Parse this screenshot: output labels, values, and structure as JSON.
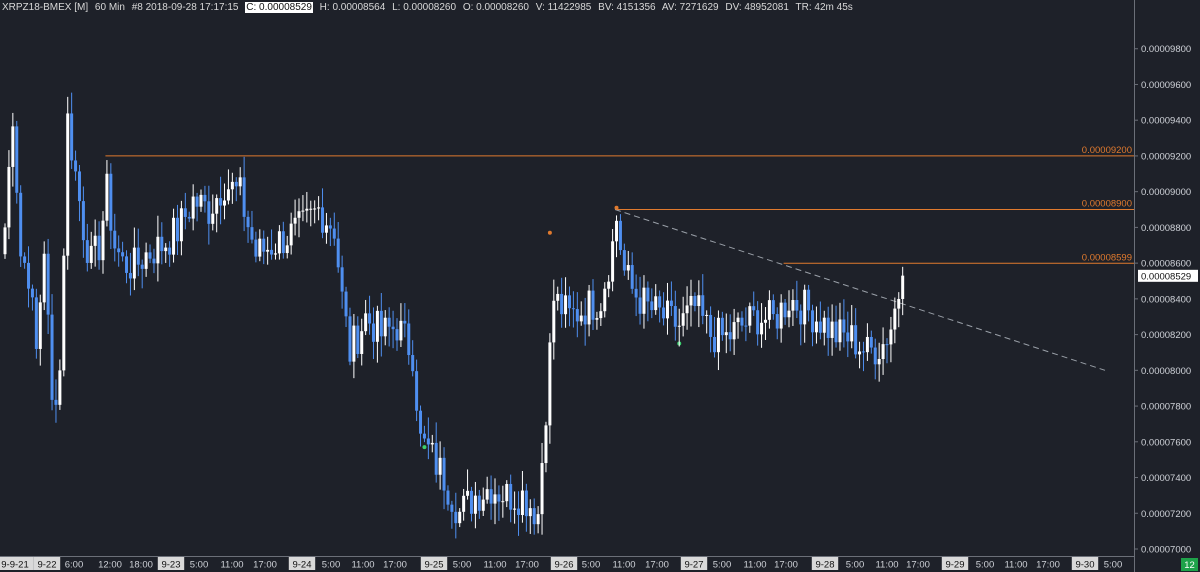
{
  "header": {
    "symbol": "XRPZ18-BMEX [M]",
    "timeframe": "60 Min",
    "bar_info": "#8 2018-09-28 17:17:15",
    "close": "C: 0.00008529",
    "high": "H: 0.00008564",
    "low": "L: 0.00008260",
    "open": "O: 0.00008260",
    "volume": "V: 11422985",
    "bv": "BV: 4151356",
    "av": "AV: 7271629",
    "dv": "DV: 48952081",
    "tr": "TR: 42m 45s"
  },
  "colors": {
    "background": "#1e2129",
    "up": "#ffffff",
    "down": "#4f8ff0",
    "level": "#e07a2e",
    "trend": "#9aa0a8"
  },
  "chart_data": {
    "type": "candlestick",
    "y_range": [
      7e-05,
      0.0001
    ],
    "y_ticks": [
      "0.00009800",
      "0.00009600",
      "0.00009400",
      "0.00009200",
      "0.00009000",
      "0.00008800",
      "0.00008600",
      "0.00008400",
      "0.00008200",
      "0.00008000",
      "0.00007800",
      "0.00007600",
      "0.00007400",
      "0.00007200",
      "0.00007000"
    ],
    "current_price_label": "0.00008529",
    "x_ticks": [
      {
        "label": "9-9-21",
        "date": true
      },
      {
        "label": "9-22",
        "date": true
      },
      {
        "label": "6:00"
      },
      {
        "label": "12:00"
      },
      {
        "label": "18:00"
      },
      {
        "label": "9-23",
        "date": true
      },
      {
        "label": "5:00"
      },
      {
        "label": "11:00"
      },
      {
        "label": "17:00"
      },
      {
        "label": "9-24",
        "date": true
      },
      {
        "label": "5:00"
      },
      {
        "label": "11:00"
      },
      {
        "label": "17:00"
      },
      {
        "label": "9-25",
        "date": true
      },
      {
        "label": "5:00"
      },
      {
        "label": "11:00"
      },
      {
        "label": "17:00"
      },
      {
        "label": "9-26",
        "date": true
      },
      {
        "label": "5:00"
      },
      {
        "label": "11:00"
      },
      {
        "label": "17:00"
      },
      {
        "label": "9-27",
        "date": true
      },
      {
        "label": "5:00"
      },
      {
        "label": "11:00"
      },
      {
        "label": "17:00"
      },
      {
        "label": "9-28",
        "date": true
      },
      {
        "label": "5:00"
      },
      {
        "label": "11:00"
      },
      {
        "label": "17:00"
      },
      {
        "label": "9-29",
        "date": true
      },
      {
        "label": "5:00"
      },
      {
        "label": "11:00"
      },
      {
        "label": "17:00"
      },
      {
        "label": "9-30",
        "date": true
      },
      {
        "label": "5:00"
      }
    ],
    "horizontal_levels": [
      {
        "label": "0.00009200",
        "value": 9.2e-05,
        "from_bar": 26
      },
      {
        "label": "0.00008900",
        "value": 8.9e-05,
        "from_bar": 156
      },
      {
        "label": "0.00008599",
        "value": 8.599e-05,
        "from_bar": 199
      }
    ],
    "trendline": {
      "from": {
        "bar": 156,
        "value": 8.9e-05
      },
      "to": {
        "bar": 281,
        "value": 8e-05
      }
    },
    "markers": [
      {
        "bar": 139,
        "value": 8.77e-05,
        "color": "#e07a2e"
      },
      {
        "bar": 156,
        "value": 8.91e-05,
        "color": "#e07a2e"
      },
      {
        "bar": 107,
        "value": 7.57e-05,
        "color": "#3ccf6e"
      },
      {
        "bar": 172,
        "value": 8.15e-05,
        "color": "#3ccf6e"
      }
    ],
    "last_badge": "12",
    "anchors": [
      [
        0,
        8.8e-05
      ],
      [
        2,
        9.45e-05
      ],
      [
        4,
        8.65e-05
      ],
      [
        6,
        8.55e-05
      ],
      [
        8,
        8.1e-05
      ],
      [
        10,
        8.7e-05
      ],
      [
        12,
        7.8e-05
      ],
      [
        14,
        8e-05
      ],
      [
        16,
        9.4e-05
      ],
      [
        18,
        9.1e-05
      ],
      [
        20,
        8.8e-05
      ],
      [
        22,
        8.6e-05
      ],
      [
        24,
        8.7e-05
      ],
      [
        26,
        9e-05
      ],
      [
        28,
        8.7e-05
      ],
      [
        30,
        8.6e-05
      ],
      [
        33,
        8.58e-05
      ],
      [
        36,
        8.65e-05
      ],
      [
        40,
        8.7e-05
      ],
      [
        44,
        8.78e-05
      ],
      [
        48,
        8.95e-05
      ],
      [
        52,
        8.9e-05
      ],
      [
        56,
        9.05e-05
      ],
      [
        60,
        8.98e-05
      ],
      [
        64,
        8.65e-05
      ],
      [
        68,
        8.7e-05
      ],
      [
        72,
        8.75e-05
      ],
      [
        76,
        8.8e-05
      ],
      [
        80,
        8.9e-05
      ],
      [
        84,
        8.8e-05
      ],
      [
        86,
        8.4e-05
      ],
      [
        88,
        8.1e-05
      ],
      [
        92,
        8.3e-05
      ],
      [
        96,
        8.2e-05
      ],
      [
        100,
        8.25e-05
      ],
      [
        104,
        8.1e-05
      ],
      [
        106,
        7.6e-05
      ],
      [
        108,
        7.55e-05
      ],
      [
        112,
        7.4e-05
      ],
      [
        116,
        7.2e-05
      ],
      [
        120,
        7.3e-05
      ],
      [
        124,
        7.35e-05
      ],
      [
        128,
        7.3e-05
      ],
      [
        132,
        7.3e-05
      ],
      [
        136,
        7.2e-05
      ],
      [
        138,
        7.8e-05
      ],
      [
        140,
        8.4e-05
      ],
      [
        144,
        8.3e-05
      ],
      [
        148,
        8.35e-05
      ],
      [
        152,
        8.4e-05
      ],
      [
        155,
        8.7e-05
      ],
      [
        156,
        8.85e-05
      ],
      [
        158,
        8.55e-05
      ],
      [
        160,
        8.45e-05
      ],
      [
        164,
        8.35e-05
      ],
      [
        168,
        8.3e-05
      ],
      [
        172,
        8.25e-05
      ],
      [
        176,
        8.35e-05
      ],
      [
        180,
        8.2e-05
      ],
      [
        184,
        8.18e-05
      ],
      [
        188,
        8.25e-05
      ],
      [
        192,
        8.3e-05
      ],
      [
        196,
        8.28e-05
      ],
      [
        200,
        8.4e-05
      ],
      [
        204,
        8.35e-05
      ],
      [
        208,
        8.28e-05
      ],
      [
        212,
        8.2e-05
      ],
      [
        216,
        8.18e-05
      ],
      [
        220,
        8.1e-05
      ],
      [
        224,
        8.15e-05
      ],
      [
        226,
        8.25e-05
      ],
      [
        229,
        8.53e-05
      ]
    ]
  }
}
